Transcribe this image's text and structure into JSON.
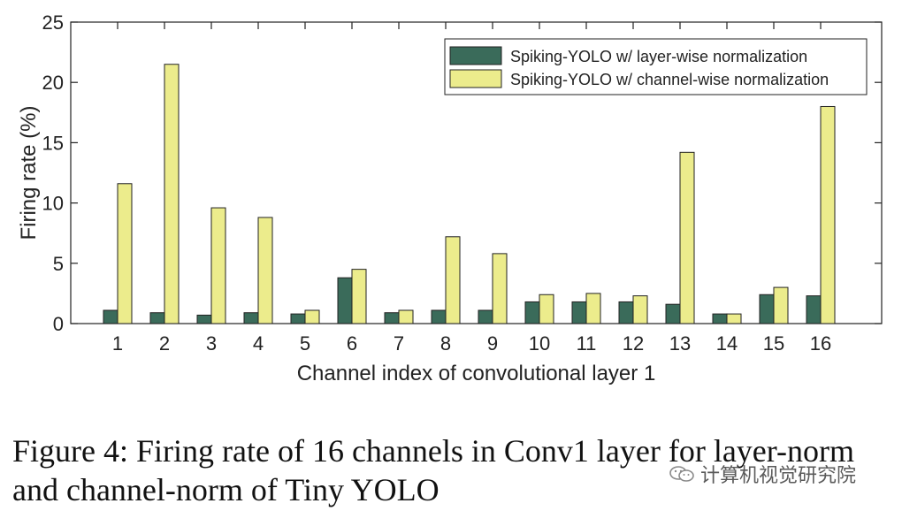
{
  "chart_data": {
    "type": "bar",
    "xlabel": "Channel index of convolutional layer 1",
    "ylabel": "Firing rate (%)",
    "ylim": [
      0,
      25
    ],
    "yticks": [
      0,
      5,
      10,
      15,
      20,
      25
    ],
    "categories": [
      "1",
      "2",
      "3",
      "4",
      "5",
      "6",
      "7",
      "8",
      "9",
      "10",
      "11",
      "12",
      "13",
      "14",
      "15",
      "16"
    ],
    "series": [
      {
        "name": "Spiking-YOLO w/ layer-wise normalization",
        "color": "#3a6b5a",
        "values": [
          1.1,
          0.9,
          0.7,
          0.9,
          0.8,
          3.8,
          0.9,
          1.1,
          1.1,
          1.8,
          1.8,
          1.8,
          1.6,
          0.8,
          2.4,
          2.3
        ]
      },
      {
        "name": "Spiking-YOLO w/ channel-wise normalization",
        "color": "#ecec8c",
        "values": [
          11.6,
          21.5,
          9.6,
          8.8,
          1.1,
          4.5,
          1.1,
          7.2,
          5.8,
          2.4,
          2.5,
          2.3,
          14.2,
          0.8,
          3.0,
          18.0
        ]
      }
    ],
    "grid": false,
    "legend_position": "top-right"
  },
  "caption": "Figure 4: Firing rate of 16 channels in Conv1 layer for layer-norm and channel-norm of Tiny YOLO",
  "watermark": "计算机视觉研究院"
}
